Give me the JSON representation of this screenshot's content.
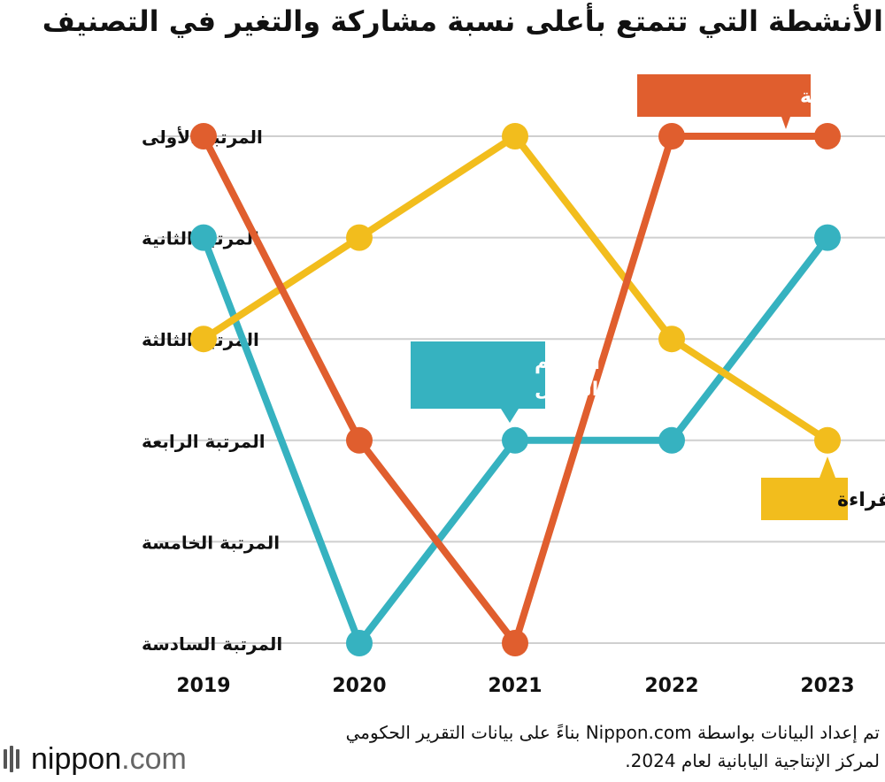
{
  "title": "الأنشطة التي تتمتع بأعلى نسبة مشاركة والتغير في التصنيف",
  "footer": {
    "note_line1": "تم إعداد البيانات بواسطة Nippon.com بناءً على بيانات التقرير الحكومي",
    "note_line2": "لمركز الإنتاجية اليابانية لعام 2024.",
    "logo_name": "nippon",
    "logo_dot": ".",
    "logo_tld": "com"
  },
  "chart_data": {
    "type": "line",
    "title": "الأنشطة التي تتمتع بأعلى نسبة مشاركة والتغير في التصنيف",
    "x": [
      "2019",
      "2020",
      "2021",
      "2022",
      "2023"
    ],
    "y_categories": [
      "المرتبة الأولى",
      "المرتبة الثانية",
      "المرتبة الثالثة",
      "المرتبة الرابعة",
      "المرتبة الخامسة",
      "المرتبة السادسة"
    ],
    "ylim": [
      1,
      6
    ],
    "y_inverted": true,
    "grid": true,
    "legend": "inline-labels",
    "series": [
      {
        "name": "السياحة الداخلية",
        "color": "#e05e2e",
        "values": [
          1,
          4,
          6,
          1,
          1
        ]
      },
      {
        "name": "القراءة",
        "color": "#f2bd1d",
        "values": [
          3,
          2,
          1,
          3,
          4
        ]
      },
      {
        "name": "تناول الطعام\nخارج المنزل",
        "color": "#36b2c0",
        "values": [
          2,
          6,
          4,
          4,
          2
        ]
      }
    ]
  }
}
